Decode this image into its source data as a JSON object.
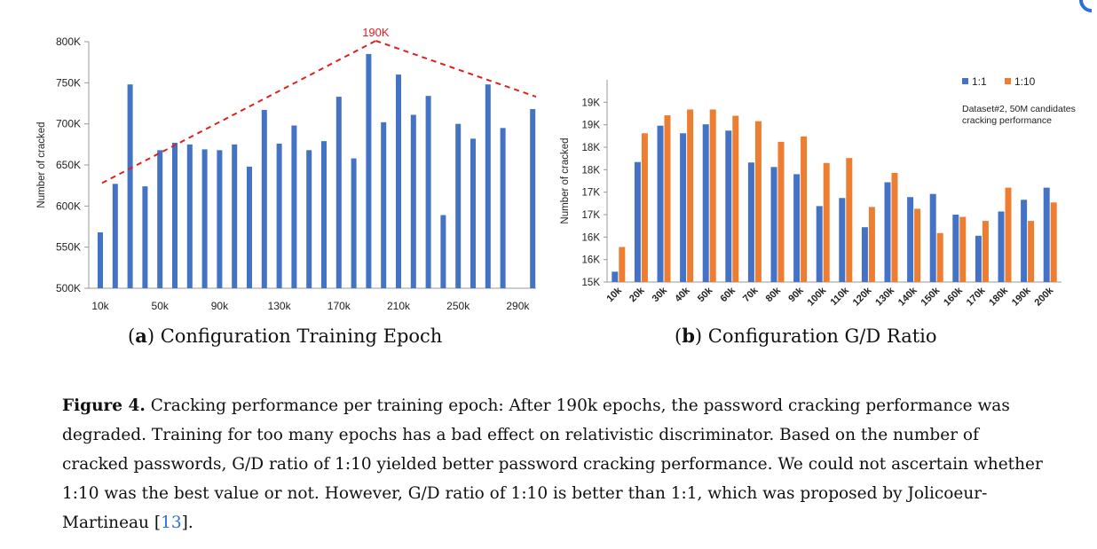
{
  "colors": {
    "blue": "#4472c4",
    "orange": "#ed7d31",
    "annotation": "#e02020",
    "text": "#111111",
    "ref": "#2e6fd6"
  },
  "chart_data": [
    {
      "type": "bar",
      "id": "a",
      "title": "",
      "xlabel": "",
      "ylabel": "Number of cracked",
      "ylim": [
        500,
        800
      ],
      "yticks": [
        "500K",
        "550K",
        "600K",
        "650K",
        "700K",
        "750K",
        "800K"
      ],
      "ytick_values": [
        500,
        550,
        600,
        650,
        700,
        750,
        800
      ],
      "categories": [
        "10k",
        "20k",
        "30k",
        "40k",
        "50k",
        "60k",
        "70k",
        "80k",
        "90k",
        "100k",
        "110k",
        "120k",
        "130k",
        "140k",
        "150k",
        "160k",
        "170k",
        "180k",
        "190k",
        "200k",
        "210k",
        "220k",
        "230k",
        "240k",
        "250k",
        "260k",
        "270k",
        "280k",
        "290k",
        "300k"
      ],
      "xtick_labels": [
        "10k",
        "50k",
        "90k",
        "130k",
        "170k",
        "210k",
        "250k",
        "290k"
      ],
      "series": [
        {
          "name": "cracked",
          "values": [
            568,
            627,
            748,
            624,
            668,
            677,
            675,
            669,
            668,
            675,
            648,
            717,
            676,
            698,
            668,
            679,
            733,
            658,
            785,
            702,
            760,
            711,
            734,
            589,
            700,
            682,
            748,
            695,
            null,
            718
          ]
        }
      ],
      "annotation": {
        "text": "190K",
        "style": "dashed trend lines"
      }
    },
    {
      "type": "bar",
      "id": "b",
      "title": "",
      "xlabel": "",
      "ylabel": "Number of cracked",
      "ylim": [
        15000,
        19500
      ],
      "yticks": [
        "15K",
        "16K",
        "16K",
        "17K",
        "17K",
        "18K",
        "18K",
        "19K",
        "19K"
      ],
      "ytick_values": [
        15000,
        15500,
        16000,
        16500,
        17000,
        17500,
        18000,
        18500,
        19000
      ],
      "categories": [
        "10k",
        "20k",
        "30k",
        "40k",
        "50k",
        "60k",
        "70k",
        "80k",
        "90k",
        "100k",
        "110k",
        "120k",
        "130k",
        "140k",
        "150k",
        "160k",
        "170k",
        "180k",
        "190k",
        "200k"
      ],
      "series": [
        {
          "name": "1:1",
          "values": [
            15230,
            17670,
            18480,
            18310,
            18510,
            18370,
            17660,
            17560,
            17400,
            16690,
            16870,
            16220,
            17220,
            16890,
            16960,
            16500,
            16030,
            16570,
            16830,
            17100
          ]
        },
        {
          "name": "1:10",
          "values": [
            15780,
            18310,
            18710,
            18840,
            18840,
            18700,
            18580,
            18120,
            18240,
            17650,
            17760,
            16670,
            17430,
            16630,
            16090,
            16450,
            16360,
            17100,
            16360,
            16770
          ]
        }
      ],
      "legend_position": "top-right",
      "annotation": {
        "text": "Dataset#2, 50M candidates cracking performance",
        "line1": "Dataset#2, 50M candidates",
        "line2": "cracking performance"
      }
    }
  ],
  "captions": {
    "a": {
      "label": "a",
      "text": "Configuration Training Epoch"
    },
    "b": {
      "label": "b",
      "text": "Configuration G/D Ratio"
    }
  },
  "figure_caption": {
    "label": "Figure 4.",
    "text": "Cracking performance per training epoch: After 190k epochs, the password cracking performance was degraded. Training for too many epochs has a bad effect on relativistic discriminator. Based on the number of cracked passwords, G/D ratio of 1:10 yielded better password cracking performance. We could not ascertain whether 1:10 was the best value or not. However, G/D ratio of 1:10 is better than 1:1, which was proposed by Jolicoeur-Martineau [",
    "ref": "13",
    "end": "]."
  }
}
